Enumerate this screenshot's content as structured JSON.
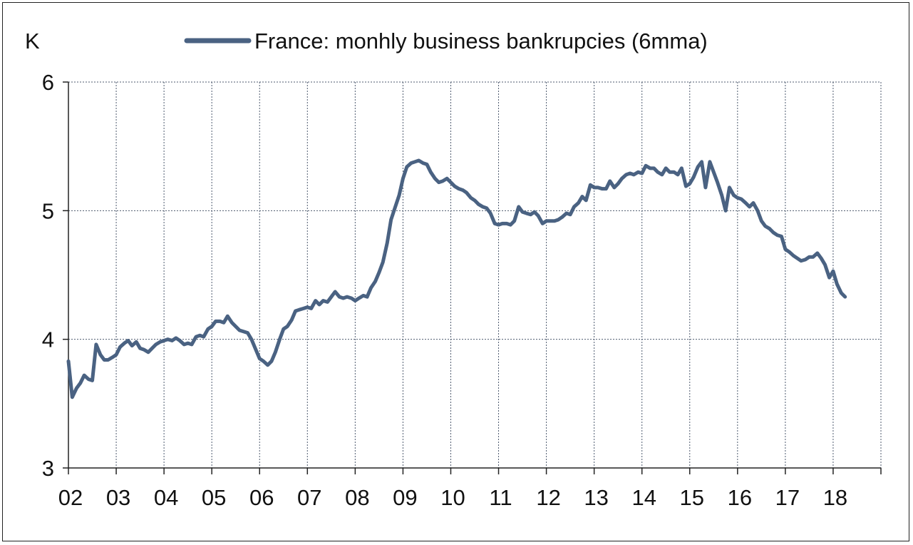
{
  "chart_data": {
    "type": "line",
    "unit_label": "K",
    "legend_position": "top",
    "grid": true,
    "line_color": "#4a6282",
    "ylim": [
      3,
      6
    ],
    "yticks": [
      3,
      4,
      5,
      6
    ],
    "xlim": [
      2002,
      2019
    ],
    "xticks": [
      {
        "label": "02",
        "value": 2002
      },
      {
        "label": "03",
        "value": 2003
      },
      {
        "label": "04",
        "value": 2004
      },
      {
        "label": "05",
        "value": 2005
      },
      {
        "label": "06",
        "value": 2006
      },
      {
        "label": "07",
        "value": 2007
      },
      {
        "label": "08",
        "value": 2008
      },
      {
        "label": "09",
        "value": 2009
      },
      {
        "label": "10",
        "value": 2010
      },
      {
        "label": "11",
        "value": 2011
      },
      {
        "label": "12",
        "value": 2012
      },
      {
        "label": "13",
        "value": 2013
      },
      {
        "label": "14",
        "value": 2014
      },
      {
        "label": "15",
        "value": 2015
      },
      {
        "label": "16",
        "value": 2016
      },
      {
        "label": "17",
        "value": 2017
      },
      {
        "label": "18",
        "value": 2018
      }
    ],
    "series": [
      {
        "name": "France: monhly business bankrupcies (6mma)",
        "x": [
          2002.0,
          2002.08,
          2002.17,
          2002.25,
          2002.33,
          2002.42,
          2002.5,
          2002.58,
          2002.67,
          2002.75,
          2002.83,
          2002.92,
          2003.0,
          2003.08,
          2003.17,
          2003.25,
          2003.33,
          2003.42,
          2003.5,
          2003.58,
          2003.67,
          2003.75,
          2003.83,
          2003.92,
          2004.0,
          2004.08,
          2004.17,
          2004.25,
          2004.33,
          2004.42,
          2004.5,
          2004.58,
          2004.67,
          2004.75,
          2004.83,
          2004.92,
          2005.0,
          2005.08,
          2005.17,
          2005.25,
          2005.33,
          2005.42,
          2005.5,
          2005.58,
          2005.67,
          2005.75,
          2005.83,
          2005.92,
          2006.0,
          2006.08,
          2006.17,
          2006.25,
          2006.33,
          2006.42,
          2006.5,
          2006.58,
          2006.67,
          2006.75,
          2006.83,
          2006.92,
          2007.0,
          2007.08,
          2007.17,
          2007.25,
          2007.33,
          2007.42,
          2007.5,
          2007.58,
          2007.67,
          2007.75,
          2007.83,
          2007.92,
          2008.0,
          2008.08,
          2008.17,
          2008.25,
          2008.33,
          2008.42,
          2008.5,
          2008.58,
          2008.67,
          2008.75,
          2008.83,
          2008.92,
          2009.0,
          2009.08,
          2009.17,
          2009.25,
          2009.33,
          2009.42,
          2009.5,
          2009.58,
          2009.67,
          2009.75,
          2009.83,
          2009.92,
          2010.0,
          2010.08,
          2010.17,
          2010.25,
          2010.33,
          2010.42,
          2010.5,
          2010.58,
          2010.67,
          2010.75,
          2010.83,
          2010.92,
          2011.0,
          2011.08,
          2011.17,
          2011.25,
          2011.33,
          2011.42,
          2011.5,
          2011.58,
          2011.67,
          2011.75,
          2011.83,
          2011.92,
          2012.0,
          2012.08,
          2012.17,
          2012.25,
          2012.33,
          2012.42,
          2012.5,
          2012.58,
          2012.67,
          2012.75,
          2012.83,
          2012.92,
          2013.0,
          2013.08,
          2013.17,
          2013.25,
          2013.33,
          2013.42,
          2013.5,
          2013.58,
          2013.67,
          2013.75,
          2013.83,
          2013.92,
          2014.0,
          2014.08,
          2014.17,
          2014.25,
          2014.33,
          2014.42,
          2014.5,
          2014.58,
          2014.67,
          2014.75,
          2014.83,
          2014.92,
          2015.0,
          2015.08,
          2015.17,
          2015.25,
          2015.33,
          2015.42,
          2015.5,
          2015.58,
          2015.67,
          2015.75,
          2015.83,
          2015.92,
          2016.0,
          2016.08,
          2016.17,
          2016.25,
          2016.33,
          2016.42,
          2016.5,
          2016.58,
          2016.67,
          2016.75,
          2016.83,
          2016.92,
          2017.0,
          2017.08,
          2017.17,
          2017.25,
          2017.33,
          2017.42,
          2017.5,
          2017.58,
          2017.67,
          2017.75,
          2017.83,
          2017.92,
          2018.0,
          2018.08,
          2018.17,
          2018.25
        ],
        "values": [
          3.83,
          3.55,
          3.62,
          3.66,
          3.72,
          3.69,
          3.68,
          3.96,
          3.88,
          3.84,
          3.84,
          3.86,
          3.88,
          3.94,
          3.97,
          3.99,
          3.95,
          3.98,
          3.93,
          3.92,
          3.9,
          3.93,
          3.96,
          3.98,
          3.99,
          4.0,
          3.99,
          4.01,
          3.99,
          3.96,
          3.97,
          3.96,
          4.02,
          4.03,
          4.02,
          4.08,
          4.1,
          4.14,
          4.14,
          4.13,
          4.18,
          4.13,
          4.1,
          4.07,
          4.06,
          4.05,
          4.0,
          3.92,
          3.85,
          3.83,
          3.8,
          3.83,
          3.9,
          4.0,
          4.08,
          4.1,
          4.15,
          4.22,
          4.23,
          4.24,
          4.25,
          4.24,
          4.3,
          4.27,
          4.3,
          4.29,
          4.33,
          4.37,
          4.33,
          4.32,
          4.33,
          4.32,
          4.3,
          4.32,
          4.34,
          4.33,
          4.4,
          4.45,
          4.52,
          4.6,
          4.75,
          4.93,
          5.02,
          5.12,
          5.25,
          5.34,
          5.37,
          5.38,
          5.39,
          5.37,
          5.36,
          5.3,
          5.25,
          5.22,
          5.23,
          5.25,
          5.22,
          5.19,
          5.17,
          5.16,
          5.14,
          5.1,
          5.08,
          5.05,
          5.03,
          5.02,
          4.98,
          4.9,
          4.89,
          4.9,
          4.9,
          4.89,
          4.92,
          5.03,
          4.99,
          4.98,
          4.97,
          4.99,
          4.96,
          4.9,
          4.92,
          4.92,
          4.92,
          4.93,
          4.95,
          4.98,
          4.97,
          5.03,
          5.06,
          5.11,
          5.08,
          5.2,
          5.18,
          5.18,
          5.17,
          5.17,
          5.23,
          5.18,
          5.21,
          5.25,
          5.28,
          5.29,
          5.28,
          5.3,
          5.29,
          5.35,
          5.33,
          5.33,
          5.3,
          5.28,
          5.33,
          5.3,
          5.3,
          5.28,
          5.33,
          5.19,
          5.21,
          5.26,
          5.34,
          5.38,
          5.18,
          5.38,
          5.3,
          5.22,
          5.12,
          5.0,
          5.18,
          5.12,
          5.1,
          5.09,
          5.06,
          5.03,
          5.06,
          5.0,
          4.92,
          4.88,
          4.86,
          4.83,
          4.81,
          4.8,
          4.7,
          4.68,
          4.65,
          4.63,
          4.61,
          4.62,
          4.64,
          4.64,
          4.67,
          4.63,
          4.58,
          4.48,
          4.53,
          4.43,
          4.36,
          4.33
        ]
      }
    ]
  }
}
